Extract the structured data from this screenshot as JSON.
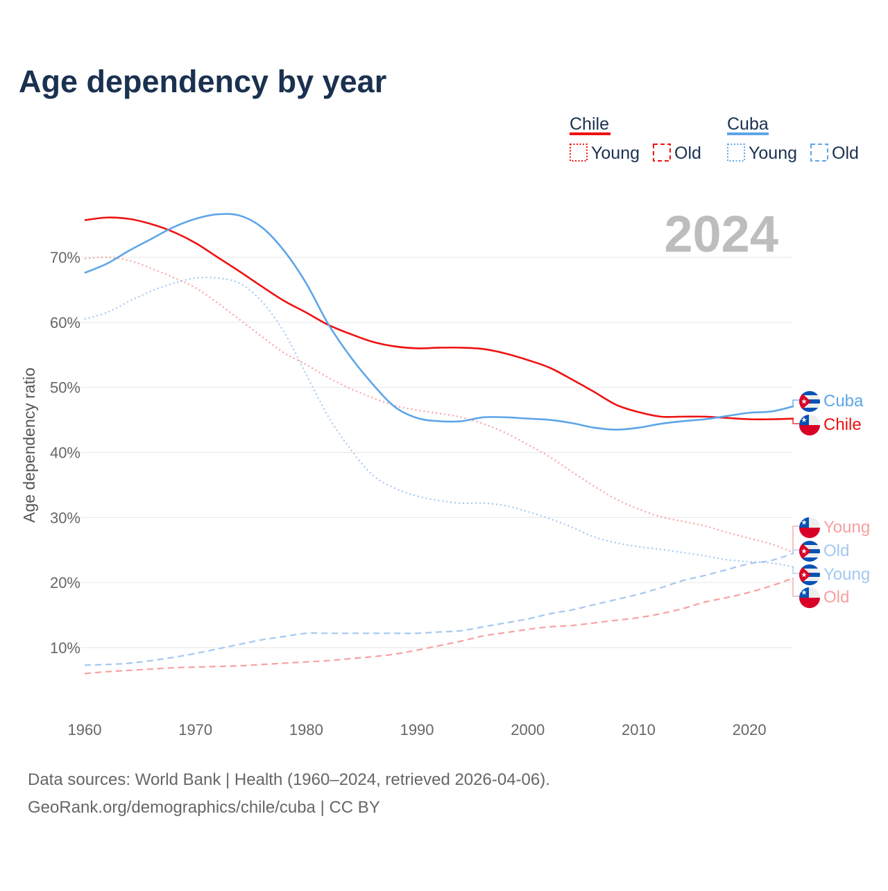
{
  "chart_data": {
    "type": "line",
    "title": "Age dependency by year",
    "xlabel": "",
    "ylabel": "Age dependency ratio",
    "xlim": [
      1960,
      2024
    ],
    "ylim": [
      0,
      78
    ],
    "grid": true,
    "year_badge": "2024",
    "x_ticks": [
      1960,
      1970,
      1980,
      1990,
      2000,
      2010,
      2020
    ],
    "y_ticks": [
      10,
      20,
      30,
      40,
      50,
      60,
      70
    ],
    "y_tick_labels": [
      "10%",
      "20%",
      "30%",
      "40%",
      "50%",
      "60%",
      "70%"
    ],
    "x": [
      1960,
      1962,
      1964,
      1966,
      1968,
      1970,
      1972,
      1974,
      1976,
      1978,
      1980,
      1982,
      1984,
      1986,
      1988,
      1990,
      1992,
      1994,
      1996,
      1998,
      2000,
      2002,
      2004,
      2006,
      2008,
      2010,
      2012,
      2014,
      2016,
      2018,
      2020,
      2022,
      2024
    ],
    "series": [
      {
        "name": "Chile",
        "country": "Chile",
        "kind": "Total",
        "color": "#ee1111",
        "style": "solid",
        "values": [
          75.7,
          76.1,
          75.9,
          75.1,
          73.9,
          72.2,
          70.0,
          67.8,
          65.5,
          63.3,
          61.5,
          59.6,
          58.2,
          57.0,
          56.3,
          56.0,
          56.1,
          56.1,
          55.9,
          55.2,
          54.2,
          53.0,
          51.2,
          49.3,
          47.3,
          46.2,
          45.5,
          45.5,
          45.5,
          45.3,
          45.1,
          45.1,
          45.2
        ]
      },
      {
        "name": "Cuba",
        "country": "Cuba",
        "kind": "Total",
        "color": "#5da5e8",
        "style": "solid",
        "values": [
          67.6,
          69.0,
          71.0,
          72.8,
          74.6,
          75.9,
          76.6,
          76.4,
          74.6,
          71.0,
          66.0,
          59.7,
          54.7,
          50.5,
          47.0,
          45.3,
          44.8,
          44.8,
          45.4,
          45.4,
          45.2,
          45.0,
          44.5,
          43.8,
          43.5,
          43.8,
          44.4,
          44.8,
          45.1,
          45.6,
          46.1,
          46.3,
          47.1
        ]
      },
      {
        "name": "Young",
        "country": "Chile",
        "kind": "Young",
        "color": "#f7a0a0",
        "style": "dotted",
        "values": [
          69.8,
          70.0,
          69.5,
          68.3,
          66.9,
          65.3,
          63.0,
          60.4,
          57.8,
          55.3,
          53.5,
          51.5,
          49.8,
          48.4,
          47.2,
          46.5,
          46.0,
          45.4,
          44.4,
          43.0,
          41.2,
          39.3,
          37.0,
          34.8,
          32.8,
          31.3,
          30.1,
          29.4,
          28.7,
          27.7,
          26.8,
          25.9,
          24.6
        ]
      },
      {
        "name": "Old",
        "country": "Cuba",
        "kind": "Old",
        "color": "#a3c8f0",
        "style": "dashed",
        "values": [
          7.3,
          7.4,
          7.6,
          8.0,
          8.5,
          9.1,
          9.8,
          10.5,
          11.2,
          11.7,
          12.2,
          12.2,
          12.2,
          12.2,
          12.2,
          12.2,
          12.4,
          12.6,
          13.2,
          13.8,
          14.4,
          15.2,
          15.8,
          16.6,
          17.4,
          18.2,
          19.2,
          20.3,
          21.1,
          22.0,
          22.9,
          23.4,
          24.5
        ]
      },
      {
        "name": "Young",
        "country": "Cuba",
        "kind": "Young",
        "color": "#a3c8f0",
        "style": "dotted",
        "values": [
          60.5,
          61.5,
          63.2,
          64.8,
          66.0,
          66.8,
          66.8,
          66.0,
          63.2,
          58.5,
          52.0,
          45.5,
          40.5,
          36.5,
          34.5,
          33.3,
          32.6,
          32.2,
          32.2,
          31.8,
          30.9,
          29.8,
          28.5,
          27.0,
          26.1,
          25.5,
          25.1,
          24.6,
          24.1,
          23.5,
          23.2,
          23.0,
          22.4
        ]
      },
      {
        "name": "Old",
        "country": "Chile",
        "kind": "Old",
        "color": "#f7a0a0",
        "style": "dashed",
        "values": [
          6.0,
          6.3,
          6.5,
          6.7,
          6.9,
          7.0,
          7.1,
          7.2,
          7.4,
          7.6,
          7.8,
          8.0,
          8.3,
          8.6,
          9.0,
          9.6,
          10.3,
          11.0,
          11.8,
          12.3,
          12.8,
          13.2,
          13.4,
          13.8,
          14.2,
          14.6,
          15.2,
          16.0,
          17.0,
          17.7,
          18.5,
          19.5,
          20.7
        ]
      }
    ],
    "legend": {
      "placement": "top-right",
      "groups": [
        {
          "label": "Chile",
          "color": "#ee1111",
          "items": [
            "Young",
            "Old"
          ]
        },
        {
          "label": "Cuba",
          "color": "#5da5e8",
          "items": [
            "Young",
            "Old"
          ]
        }
      ]
    }
  },
  "footer": {
    "line1": "Data sources: World Bank | Health (1960–2024, retrieved 2026-04-06).",
    "line2": "GeoRank.org/demographics/chile/cuba | CC BY"
  }
}
